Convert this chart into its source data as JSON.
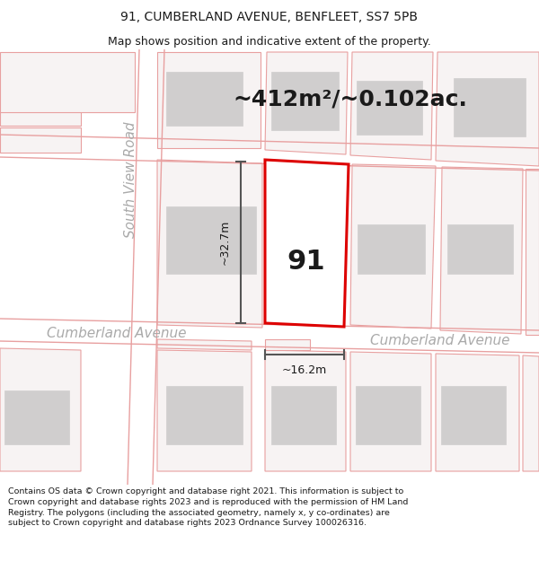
{
  "title_line1": "91, CUMBERLAND AVENUE, BENFLEET, SS7 5PB",
  "title_line2": "Map shows position and indicative extent of the property.",
  "footer_text": "Contains OS data © Crown copyright and database right 2021. This information is subject to Crown copyright and database rights 2023 and is reproduced with the permission of HM Land Registry. The polygons (including the associated geometry, namely x, y co-ordinates) are subject to Crown copyright and database rights 2023 Ordnance Survey 100026316.",
  "area_label": "~412m²/~0.102ac.",
  "dim_height": "~32.7m",
  "dim_width": "~16.2m",
  "plot_number": "91",
  "road_label_left": "Cumberland Avenue",
  "road_label_right": "Cumberland Avenue",
  "side_road_label": "South View Road",
  "map_bg": "#f7f3f3",
  "plot_fill": "#ffffff",
  "plot_border": "#dd0000",
  "building_fill": "#d0cece",
  "road_line_color": "#e8a0a0",
  "dim_line_color": "#555555",
  "text_color": "#1a1a1a",
  "road_text_color": "#aaaaaa",
  "title_fontsize": 10,
  "subtitle_fontsize": 9,
  "footer_fontsize": 6.8,
  "area_fontsize": 18,
  "dim_fontsize": 9,
  "road_fontsize": 11,
  "plot_num_fontsize": 22
}
